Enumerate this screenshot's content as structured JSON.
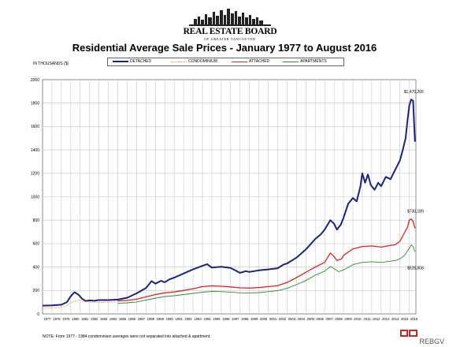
{
  "header": {
    "logo_name": "REAL ESTATE BOARD",
    "logo_subtitle": "OF GREATER VANCOUVER",
    "title": "Residential Average Sale Prices  -  January 1977 to August 2016",
    "units_label": "IN THOUSANDS ($)"
  },
  "footer": {
    "note": "NOTE:  From 1977 - 1984 condominium averages were not separated into attached & apartment.",
    "source": "REBGV"
  },
  "colors": {
    "detached": "#1a237e",
    "condominium": "#ef8f3c",
    "attached": "#e02020",
    "apartments": "#2e8b2e",
    "grid": "#c8c8c8"
  },
  "chart_data": {
    "type": "line",
    "title": "Residential Average Sale Prices  -  January 1977 to August 2016",
    "ylabel": "IN THOUSANDS ($)",
    "ylim": [
      0,
      2000
    ],
    "yticks": [
      0,
      200,
      400,
      600,
      800,
      1000,
      1200,
      1400,
      1600,
      1800,
      2000
    ],
    "xlim": [
      1977,
      2016.7
    ],
    "x_tick_labels": [
      "1977",
      "1978",
      "1979",
      "1980",
      "1981",
      "1982",
      "1983",
      "1984",
      "1985",
      "1986",
      "1987",
      "1988",
      "1989",
      "1990",
      "1991",
      "1992",
      "1993",
      "1994",
      "1995",
      "1996",
      "1997",
      "1998",
      "1999",
      "2000",
      "2001",
      "2002",
      "2003",
      "2004",
      "2005",
      "2006",
      "2007",
      "2008",
      "2009",
      "2010",
      "2011",
      "2012",
      "2013",
      "2014",
      "2015",
      "2016"
    ],
    "grid": true,
    "legend_position": "top",
    "series": [
      {
        "name": "DETACHED",
        "style": "solid",
        "x": [
          1977.0,
          1978.0,
          1979.0,
          1979.6,
          1980.0,
          1980.4,
          1980.8,
          1981.2,
          1981.6,
          1982.0,
          1982.5,
          1983.0,
          1984.0,
          1985.0,
          1986.0,
          1987.0,
          1988.0,
          1988.6,
          1989.0,
          1989.6,
          1990.0,
          1990.5,
          1991.0,
          1992.0,
          1993.0,
          1994.0,
          1994.5,
          1995.0,
          1996.0,
          1997.0,
          1998.0,
          1998.6,
          1999.0,
          2000.0,
          2001.0,
          2002.0,
          2002.6,
          2003.0,
          2004.0,
          2005.0,
          2006.0,
          2006.6,
          2007.0,
          2007.6,
          2008.0,
          2008.3,
          2008.7,
          2009.0,
          2009.5,
          2010.0,
          2010.4,
          2010.8,
          2011.0,
          2011.3,
          2011.6,
          2011.9,
          2012.3,
          2012.7,
          2013.0,
          2013.5,
          2014.0,
          2014.5,
          2015.0,
          2015.3,
          2015.6,
          2015.8,
          2016.0,
          2016.2,
          2016.4,
          2016.6
        ],
        "values": [
          70,
          72,
          78,
          100,
          150,
          185,
          165,
          130,
          110,
          115,
          112,
          118,
          118,
          122,
          138,
          175,
          220,
          280,
          258,
          282,
          270,
          295,
          310,
          345,
          380,
          410,
          425,
          395,
          402,
          392,
          350,
          365,
          358,
          372,
          380,
          390,
          420,
          430,
          480,
          550,
          640,
          680,
          720,
          800,
          770,
          720,
          760,
          820,
          940,
          990,
          960,
          1090,
          1200,
          1120,
          1190,
          1100,
          1060,
          1120,
          1090,
          1170,
          1150,
          1230,
          1310,
          1400,
          1500,
          1650,
          1780,
          1830,
          1820,
          1470
        ]
      },
      {
        "name": "CONDOMINIUM",
        "style": "dotted",
        "x": [
          1977.0,
          1978.0,
          1979.0,
          1979.6,
          1980.0,
          1980.5,
          1981.0,
          1981.5,
          1982.0,
          1983.0,
          1984.0,
          1984.9
        ],
        "values": [
          48,
          52,
          57,
          70,
          95,
          110,
          118,
          106,
          100,
          96,
          100,
          102
        ]
      },
      {
        "name": "ATTACHED",
        "style": "solid",
        "x": [
          1985.0,
          1986.0,
          1987.0,
          1988.0,
          1989.0,
          1990.0,
          1991.0,
          1992.0,
          1993.0,
          1994.0,
          1995.0,
          1996.0,
          1997.0,
          1998.0,
          1999.0,
          2000.0,
          2001.0,
          2002.0,
          2003.0,
          2004.0,
          2005.0,
          2006.0,
          2007.0,
          2007.6,
          2008.0,
          2008.3,
          2008.8,
          2009.0,
          2010.0,
          2011.0,
          2012.0,
          2013.0,
          2014.0,
          2014.5,
          2015.0,
          2015.4,
          2015.8,
          2016.0,
          2016.2,
          2016.4,
          2016.6
        ],
        "values": [
          110,
          115,
          125,
          145,
          165,
          180,
          188,
          200,
          215,
          232,
          240,
          236,
          230,
          222,
          220,
          225,
          232,
          242,
          268,
          310,
          355,
          400,
          440,
          520,
          490,
          455,
          470,
          500,
          555,
          575,
          580,
          570,
          585,
          590,
          620,
          680,
          740,
          800,
          810,
          790,
          730
        ]
      },
      {
        "name": "APARTMENTS",
        "style": "solid",
        "x": [
          1985.0,
          1986.0,
          1987.0,
          1988.0,
          1989.0,
          1990.0,
          1991.0,
          1992.0,
          1993.0,
          1994.0,
          1995.0,
          1996.0,
          1997.0,
          1998.0,
          1999.0,
          2000.0,
          2001.0,
          2002.0,
          2003.0,
          2004.0,
          2005.0,
          2006.0,
          2007.0,
          2007.6,
          2008.0,
          2008.5,
          2009.0,
          2010.0,
          2011.0,
          2012.0,
          2013.0,
          2014.0,
          2014.5,
          2015.0,
          2015.5,
          2016.0,
          2016.2,
          2016.4,
          2016.6
        ],
        "values": [
          90,
          94,
          102,
          118,
          135,
          148,
          155,
          165,
          175,
          185,
          192,
          190,
          186,
          180,
          178,
          182,
          190,
          198,
          218,
          250,
          285,
          330,
          365,
          405,
          385,
          360,
          375,
          420,
          440,
          445,
          440,
          450,
          455,
          470,
          500,
          560,
          590,
          575,
          530
        ]
      }
    ],
    "annotations": [
      {
        "text": "$1,470,265",
        "series": "DETACHED"
      },
      {
        "text": "$730,189",
        "series": "ATTACHED"
      },
      {
        "text": "$528,808",
        "series": "APARTMENTS"
      }
    ]
  }
}
